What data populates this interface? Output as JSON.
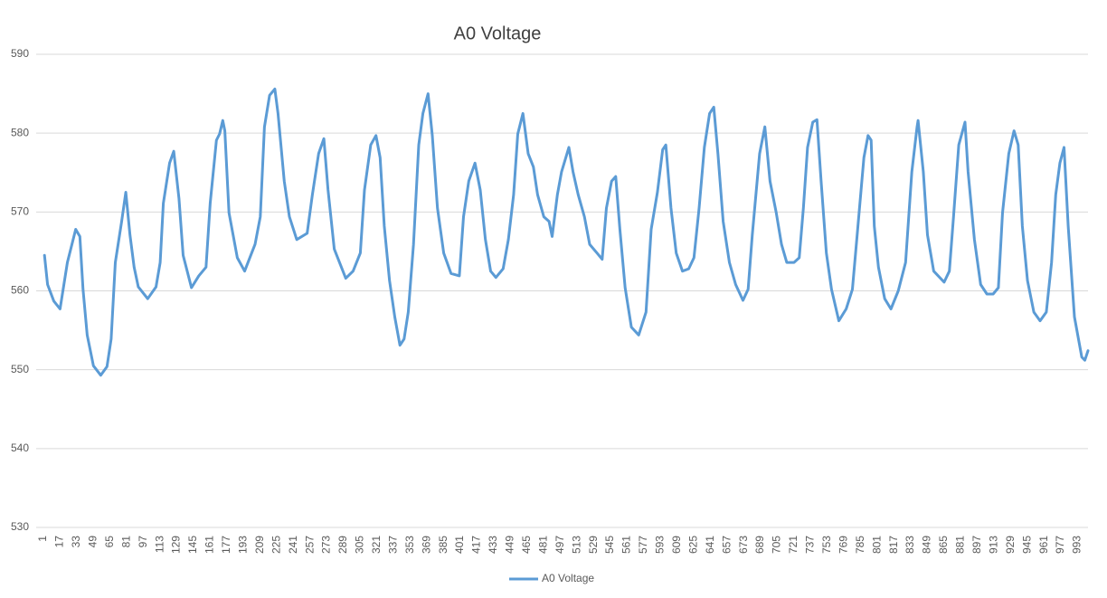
{
  "chart_data": {
    "type": "line",
    "title": "A0 Voltage",
    "x": [
      2,
      5,
      11,
      17,
      24,
      32,
      36,
      39,
      43,
      49,
      56,
      62,
      66,
      70,
      76,
      80,
      84,
      88,
      92,
      101,
      109,
      113,
      116,
      122,
      126,
      131,
      135,
      143,
      150,
      157,
      161,
      167,
      170,
      173,
      175,
      179,
      187,
      194,
      199,
      204,
      209,
      213,
      218,
      223,
      226,
      232,
      237,
      244,
      254,
      259,
      265,
      270,
      274,
      280,
      291,
      298,
      305,
      309,
      315,
      320,
      324,
      328,
      333,
      338,
      343,
      347,
      351,
      356,
      361,
      365,
      370,
      374,
      379,
      385,
      392,
      400,
      404,
      409,
      415,
      420,
      425,
      430,
      435,
      442,
      447,
      452,
      456,
      461,
      466,
      471,
      475,
      481,
      486,
      489,
      494,
      498,
      505,
      509,
      514,
      520,
      525,
      532,
      537,
      541,
      546,
      550,
      554,
      559,
      565,
      572,
      579,
      584,
      590,
      595,
      598,
      603,
      608,
      614,
      620,
      625,
      630,
      635,
      640,
      644,
      648,
      653,
      659,
      665,
      672,
      677,
      681,
      688,
      693,
      698,
      704,
      709,
      714,
      721,
      726,
      730,
      734,
      739,
      743,
      747,
      752,
      757,
      764,
      771,
      777,
      782,
      788,
      792,
      795,
      798,
      802,
      808,
      814,
      821,
      828,
      834,
      839,
      840,
      845,
      849,
      855,
      865,
      870,
      874,
      879,
      885,
      888,
      894,
      900,
      906,
      912,
      917,
      921,
      927,
      932,
      936,
      940,
      945,
      951,
      957,
      963,
      968,
      972,
      976,
      980,
      984,
      990,
      997,
      1000,
      1003
    ],
    "series": [
      {
        "name": "A0 Voltage",
        "color": "#5b9bd5",
        "values": [
          564.5,
          560.8,
          558.7,
          557.7,
          563.6,
          567.8,
          566.9,
          560.2,
          554.4,
          550.5,
          549.3,
          550.4,
          553.9,
          563.6,
          568.8,
          572.5,
          567.1,
          563.0,
          560.5,
          559.0,
          560.5,
          563.6,
          571.1,
          576.2,
          577.7,
          571.7,
          564.5,
          560.4,
          561.9,
          563.0,
          571.1,
          579.1,
          579.9,
          581.6,
          580.3,
          569.9,
          564.2,
          562.5,
          564.2,
          565.9,
          569.4,
          580.8,
          584.8,
          585.6,
          582.5,
          573.9,
          569.4,
          566.5,
          567.3,
          572.2,
          577.4,
          579.3,
          572.8,
          565.3,
          561.6,
          562.5,
          564.8,
          572.8,
          578.5,
          579.7,
          576.9,
          568.2,
          561.3,
          556.7,
          553.1,
          553.9,
          557.3,
          565.9,
          578.5,
          582.5,
          585.0,
          579.7,
          570.5,
          564.8,
          562.2,
          561.9,
          569.4,
          573.9,
          576.2,
          572.8,
          566.5,
          562.5,
          561.7,
          562.8,
          566.5,
          572.2,
          579.9,
          582.5,
          577.4,
          575.7,
          572.2,
          569.4,
          568.8,
          566.9,
          572.2,
          575.1,
          578.2,
          575.1,
          572.2,
          569.4,
          565.9,
          564.8,
          564.0,
          570.5,
          573.9,
          574.5,
          567.8,
          560.4,
          555.4,
          554.4,
          557.3,
          567.8,
          572.5,
          577.9,
          578.5,
          570.5,
          564.8,
          562.5,
          562.8,
          564.2,
          570.5,
          578.2,
          582.5,
          583.3,
          577.4,
          568.8,
          563.6,
          560.8,
          558.8,
          560.2,
          567.1,
          577.4,
          580.8,
          573.9,
          569.9,
          565.9,
          563.6,
          563.6,
          564.2,
          570.5,
          578.2,
          581.4,
          581.7,
          573.9,
          564.8,
          560.2,
          556.2,
          557.7,
          560.2,
          567.8,
          576.9,
          579.7,
          579.1,
          568.2,
          563.0,
          559.0,
          557.7,
          560.0,
          563.6,
          575.1,
          580.8,
          581.6,
          575.1,
          567.1,
          562.5,
          561.1,
          562.5,
          569.4,
          578.5,
          581.4,
          575.1,
          566.5,
          560.8,
          559.6,
          559.6,
          560.4,
          569.9,
          577.4,
          580.3,
          578.5,
          568.2,
          561.3,
          557.3,
          556.2,
          557.3,
          563.6,
          572.2,
          576.2,
          578.2,
          568.2,
          556.7,
          551.6,
          551.2,
          552.4
        ]
      }
    ],
    "xlim": [
      1,
      1003
    ],
    "xticks": [
      1,
      17,
      33,
      49,
      65,
      81,
      97,
      113,
      129,
      145,
      161,
      177,
      193,
      209,
      225,
      241,
      257,
      273,
      289,
      305,
      321,
      337,
      353,
      369,
      385,
      401,
      417,
      433,
      449,
      465,
      481,
      497,
      513,
      529,
      545,
      561,
      577,
      593,
      609,
      625,
      641,
      657,
      673,
      689,
      705,
      721,
      737,
      753,
      769,
      785,
      801,
      817,
      833,
      849,
      865,
      881,
      897,
      913,
      929,
      945,
      961,
      977,
      993
    ],
    "ylim": [
      530,
      590
    ],
    "yticks": [
      530,
      540,
      550,
      560,
      570,
      580,
      590
    ],
    "grid": true,
    "legend": "bottom"
  }
}
